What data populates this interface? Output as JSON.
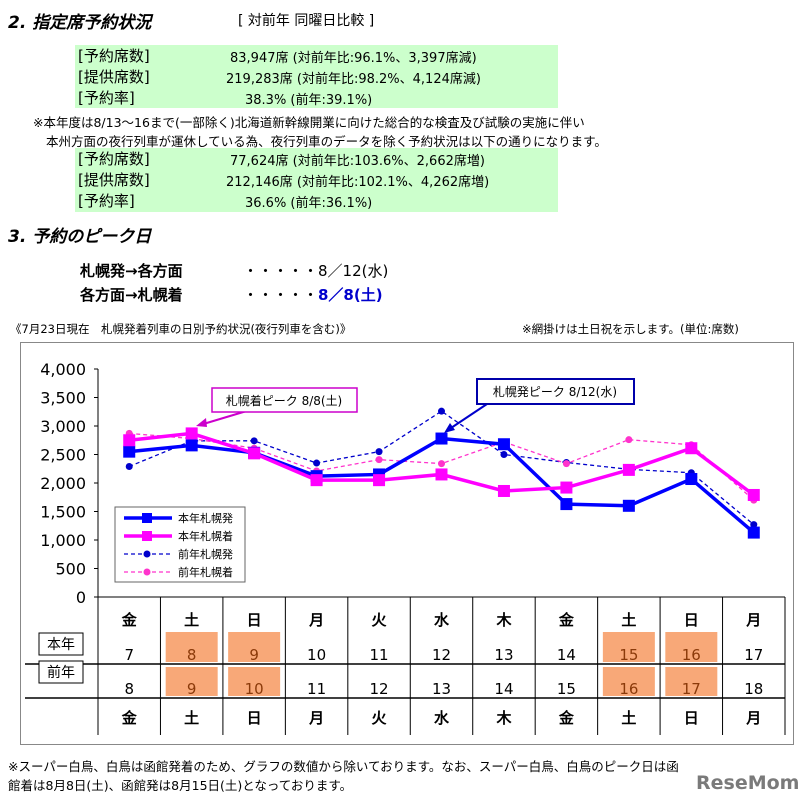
{
  "section2": {
    "title": "2. 指定席予約状況",
    "subtitle": "[ 対前年 同曜日比較 ]",
    "block1": [
      {
        "label": "[予約席数]",
        "value": "83,947席 (対前年比:96.1%、3,397席減)"
      },
      {
        "label": "[提供席数]",
        "value": "219,283席 (対前年比:98.2%、4,124席減)"
      },
      {
        "label": "[予約率]",
        "value": "38.3% (前年:39.1%)"
      }
    ],
    "note1": "※本年度は8/13～16まで(一部除く)北海道新幹線開業に向けた総合的な検査及び試験の実施に伴い",
    "note2": "本州方面の夜行列車が運休している為、夜行列車のデータを除く予約状況は以下の通りになります。",
    "block2": [
      {
        "label": "[予約席数]",
        "value": "77,624席 (対前年比:103.6%、2,662席増)"
      },
      {
        "label": "[提供席数]",
        "value": "212,146席 (対前年比:102.1%、4,262席増)"
      },
      {
        "label": "[予約率]",
        "value": "36.6% (前年:36.1%)"
      }
    ]
  },
  "section3": {
    "title": "3. 予約のピーク日",
    "peaks": [
      {
        "route": "札幌発→各方面",
        "dots": "・・・・・",
        "date": "8／12(水)"
      },
      {
        "route": "各方面→札幌着",
        "dots": "・・・・・",
        "date": "8／8(土)"
      }
    ]
  },
  "chart_caption": "《7月23日現在　札幌発着列車の日別予約状況(夜行列車を含む)》",
  "chart_note": "※網掛けは土日祝を示します。(単位:席数)",
  "chart_data": {
    "type": "line",
    "ylim": [
      0,
      4000
    ],
    "yticks": [
      "0",
      "500",
      "1,000",
      "1,500",
      "2,000",
      "2,500",
      "3,000",
      "3,500",
      "4,000"
    ],
    "categories": [
      "金",
      "土",
      "日",
      "月",
      "火",
      "水",
      "木",
      "金",
      "土",
      "日",
      "月"
    ],
    "row_labels": [
      "本年",
      "前年"
    ],
    "dates_this_year": [
      "7",
      "8",
      "9",
      "10",
      "11",
      "12",
      "13",
      "14",
      "15",
      "16",
      "17"
    ],
    "dates_last_year": [
      "8",
      "9",
      "10",
      "11",
      "12",
      "13",
      "14",
      "15",
      "16",
      "17",
      "18"
    ],
    "weekend_shaded": [
      false,
      true,
      true,
      false,
      false,
      false,
      false,
      false,
      true,
      true,
      false
    ],
    "series": [
      {
        "name": "本年札幌発",
        "color": "#0000ff",
        "style": "solid",
        "marker": "square",
        "values": [
          2550,
          2660,
          2530,
          2120,
          2150,
          2780,
          2680,
          1630,
          1600,
          2070,
          1130
        ]
      },
      {
        "name": "本年札幌着",
        "color": "#ff00ff",
        "style": "solid",
        "marker": "square",
        "values": [
          2750,
          2870,
          2520,
          2050,
          2050,
          2150,
          1860,
          1920,
          2230,
          2610,
          1790
        ]
      },
      {
        "name": "前年札幌発",
        "color": "#0000cc",
        "style": "dashed",
        "marker": "circle",
        "values": [
          2290,
          2740,
          2740,
          2350,
          2550,
          3260,
          2500,
          2360,
          2240,
          2180,
          1270
        ]
      },
      {
        "name": "前年札幌着",
        "color": "#ff33cc",
        "style": "dashed",
        "marker": "circle",
        "values": [
          2870,
          2780,
          2610,
          2210,
          2410,
          2340,
          2720,
          2340,
          2760,
          2670,
          1700
        ]
      }
    ],
    "annotations": [
      {
        "text": "札幌着ピーク 8/8(土)",
        "color": "#cc00cc"
      },
      {
        "text": "札幌発ピーク 8/12(水)",
        "color": "#0000aa"
      }
    ],
    "legend": "bottom-left",
    "shade_color": "#f8a878",
    "grid": false
  },
  "footer": [
    "※スーパー白鳥、白鳥は函館発着のため、グラフの数値から除いております。なお、スーパー白鳥、白鳥のピーク日は函",
    "館着は8月8日(土)、函館発は8月15日(土)となっております。"
  ],
  "logo": "ReseMom"
}
